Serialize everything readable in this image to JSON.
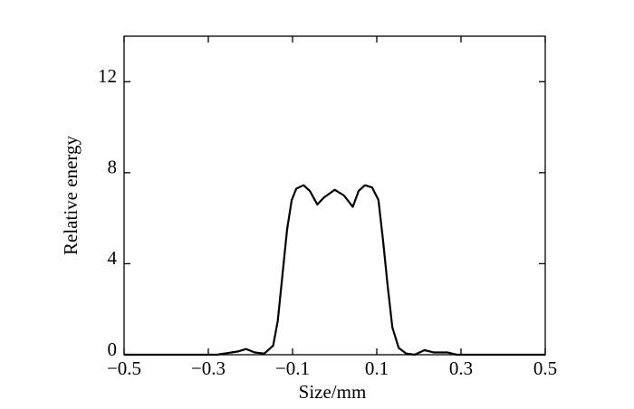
{
  "chart_data": {
    "type": "line",
    "x_label": "Size/mm",
    "y_label": "Relative energy",
    "x": [
      -0.5,
      -0.28,
      -0.228,
      -0.21,
      -0.19,
      -0.167,
      -0.146,
      -0.135,
      -0.124,
      -0.113,
      -0.102,
      -0.091,
      -0.074,
      -0.059,
      -0.041,
      -0.026,
      0,
      0.022,
      0.043,
      0.057,
      0.072,
      0.089,
      0.104,
      0.115,
      0.126,
      0.137,
      0.152,
      0.17,
      0.19,
      0.213,
      0.235,
      0.267,
      0.29,
      0.5
    ],
    "series": [
      {
        "color": "#000000",
        "values": [
          0,
          0,
          0.15,
          0.25,
          0.1,
          0.05,
          0.4,
          1.5,
          3.5,
          5.5,
          6.8,
          7.3,
          7.45,
          7.2,
          6.6,
          6.9,
          7.25,
          7.0,
          6.5,
          7.2,
          7.45,
          7.35,
          6.8,
          5.0,
          3.0,
          1.2,
          0.3,
          0.05,
          0,
          0.2,
          0.1,
          0.1,
          0,
          0
        ]
      }
    ],
    "xlim": [
      -0.5,
      0.5
    ],
    "ylim": [
      0,
      14
    ],
    "xticks": [
      {
        "value": -0.5,
        "label": "−0.5"
      },
      {
        "value": -0.3,
        "label": "−0.3"
      },
      {
        "value": -0.1,
        "label": "−0.1"
      },
      0.1,
      0.3,
      0.5
    ],
    "yticks": [
      0,
      4,
      8,
      12
    ]
  }
}
